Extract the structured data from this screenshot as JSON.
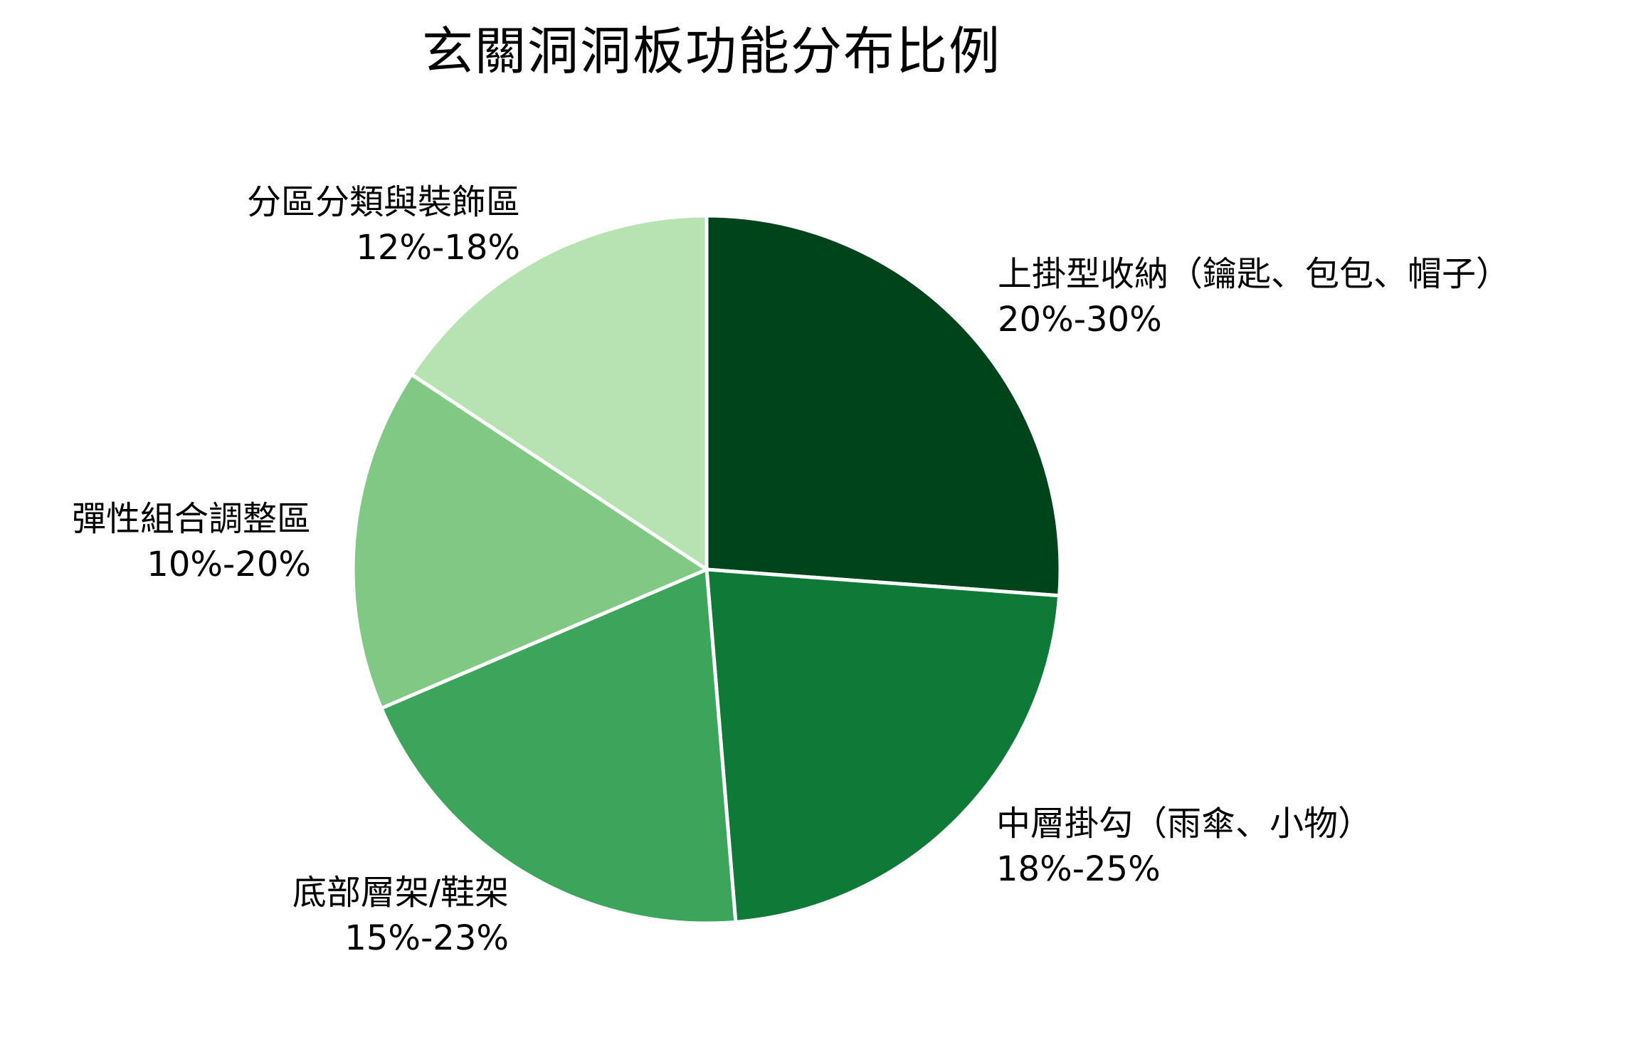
{
  "chart_data": {
    "type": "pie",
    "title": "玄關洞洞板功能分布比例",
    "categories": [
      "上掛型收納（鑰匙、包包、帽子）",
      "中層掛勾（雨傘、小物）",
      "底部層架/鞋架",
      "彈性組合調整區",
      "分區分類與裝飾區"
    ],
    "ranges": [
      "20%-30%",
      "18%-25%",
      "15%-23%",
      "10%-20%",
      "12%-18%"
    ],
    "values": [
      25,
      21.5,
      19,
      15,
      15
    ],
    "colors": [
      "#00441b",
      "#0f7a37",
      "#3da45c",
      "#80c883",
      "#b7e2b1"
    ],
    "start_angle": "12 o'clock",
    "direction": "clockwise",
    "legend": "none (labels placed beside slices)",
    "xlabel": "",
    "ylabel": ""
  },
  "labels": [
    {
      "name": "上掛型收納（鑰匙、包包、帽子）",
      "range": "20%-30%"
    },
    {
      "name": "中層掛勾（雨傘、小物）",
      "range": "18%-25%"
    },
    {
      "name": "底部層架/鞋架",
      "range": "15%-23%"
    },
    {
      "name": "彈性組合調整區",
      "range": "10%-20%"
    },
    {
      "name": "分區分類與裝飾區",
      "range": "12%-18%"
    }
  ]
}
